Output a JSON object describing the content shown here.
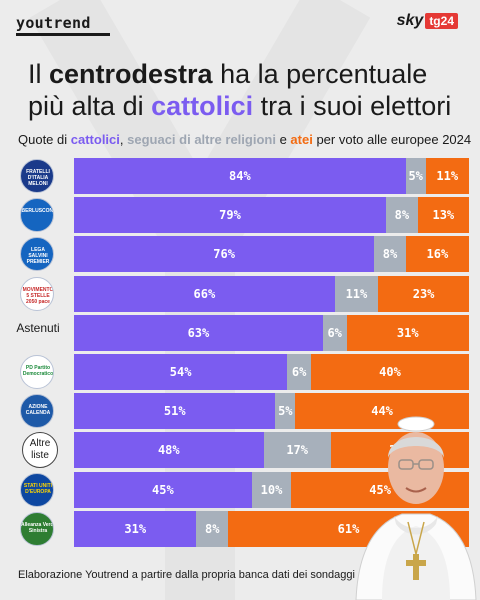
{
  "header": {
    "brand": "youtrend",
    "broadcaster_word": "sky",
    "broadcaster_badge": "tg24"
  },
  "title": {
    "part1": "Il ",
    "bold1": "centrodestra",
    "part2": " ha la percentuale più alta di ",
    "bold2": "cattolici",
    "part3": " tra i suoi elettori"
  },
  "subtitle": {
    "prefix": "Quote di ",
    "k1": "cattolici",
    "sep1": ", ",
    "k2": "seguaci di altre religioni",
    "sep2": " e ",
    "k3": "atei",
    "suffix": " per voto alle europee 2024"
  },
  "colors": {
    "cattolici": "#7b5cf0",
    "altre_religioni": "#a7b0bb",
    "atei": "#f36b12",
    "accent": "#7b5cf0"
  },
  "logos": {
    "fdi": "FRATELLI D'ITALIA MELONI",
    "fi": "BERLUSCONI",
    "lega": "LEGA SALVINI PREMIER",
    "m5s": "MOVIMENTO 5 STELLE 2050 pace",
    "pd": "PD Partito Democratico",
    "azione": "AZIONE CALENDA",
    "stati_uniti": "STATI UNITI D'EUROPA",
    "avs": "Alleanza Verdi Sinistra"
  },
  "chart_data": {
    "type": "bar",
    "stacked": true,
    "orientation": "horizontal",
    "categories": [
      "Fratelli d'Italia",
      "Forza Italia",
      "Lega",
      "Movimento 5 Stelle",
      "Astenuti",
      "PD",
      "Azione",
      "Altre liste",
      "Stati Uniti d'Europa",
      "Alleanza Verdi Sinistra"
    ],
    "category_labels_shown": {
      "Astenuti": "Astenuti",
      "Altre liste": "Altre liste"
    },
    "series": [
      {
        "name": "cattolici",
        "values": [
          84,
          79,
          76,
          66,
          63,
          54,
          51,
          48,
          45,
          31
        ]
      },
      {
        "name": "seguaci di altre religioni",
        "values": [
          5,
          8,
          8,
          11,
          6,
          6,
          5,
          17,
          10,
          8
        ]
      },
      {
        "name": "atei",
        "values": [
          11,
          13,
          16,
          23,
          31,
          40,
          44,
          35,
          45,
          61
        ]
      }
    ],
    "value_suffix": "%",
    "xlim": [
      0,
      100
    ]
  },
  "footer": "Elaborazione Youtrend a partire dalla propria banca dati dei sondaggi"
}
